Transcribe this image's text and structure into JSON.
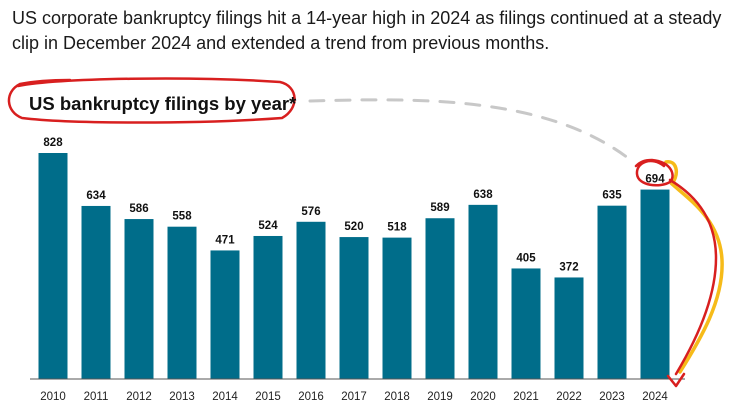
{
  "headline": "US corporate bankruptcy filings hit a 14-year high in 2024 as filings continued at a steady clip in December 2024 and extended a trend from previous months.",
  "colors": {
    "bar": "#006d8a",
    "annotation": "#d81f1f",
    "highlight": "#f5b400",
    "dash": "#c8c8c8"
  },
  "chart_data": {
    "type": "bar",
    "title": "US bankruptcy filings by year*",
    "categories": [
      "2010",
      "2011",
      "2012",
      "2013",
      "2014",
      "2015",
      "2016",
      "2017",
      "2018",
      "2019",
      "2020",
      "2021",
      "2022",
      "2023",
      "2024"
    ],
    "values": [
      828,
      634,
      586,
      558,
      471,
      524,
      576,
      520,
      518,
      589,
      638,
      405,
      372,
      635,
      694
    ],
    "ylim": [
      0,
      828
    ],
    "grid": false,
    "legend": "none"
  }
}
